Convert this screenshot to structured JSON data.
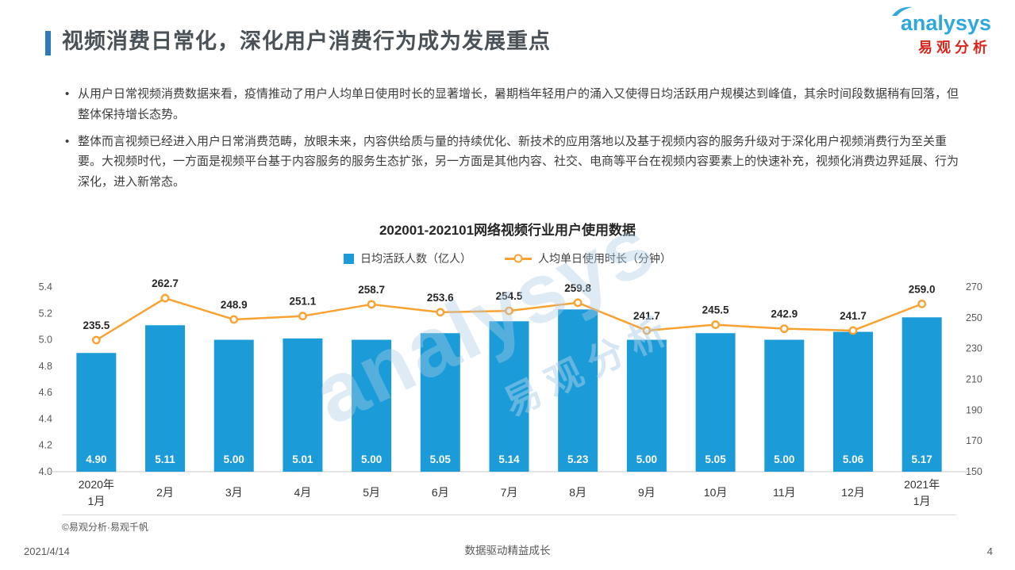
{
  "header": {
    "title": "视频消费日常化，深化用户消费行为成为发展重点",
    "logo_brand": "analysys",
    "logo_brand_cn": "易观分析"
  },
  "bullets": [
    "从用户日常视频消费数据来看，疫情推动了用户人均单日使用时长的显著增长，暑期档年轻用户的涌入又使得日均活跃用户规模达到峰值，其余时间段数据稍有回落，但整体保持增长态势。",
    "整体而言视频已经进入用户日常消费范畴，放眼未来，内容供给质与量的持续优化、新技术的应用落地以及基于视频内容的服务升级对于深化用户视频消费行为至关重要。大视频时代，一方面是视频平台基于内容服务的服务生态扩张，另一方面是其他内容、社交、电商等平台在视频内容要素上的快速补充，视频化消费边界延展、行为深化，进入新常态。"
  ],
  "chart_data": {
    "type": "bar+line",
    "title": "202001-202101网络视频行业用户使用数据",
    "grid": "off",
    "legend_position": "top",
    "categories": [
      {
        "year": "2020年",
        "month": "1月"
      },
      {
        "month": "2月"
      },
      {
        "month": "3月"
      },
      {
        "month": "4月"
      },
      {
        "month": "5月"
      },
      {
        "month": "6月"
      },
      {
        "month": "7月"
      },
      {
        "month": "8月"
      },
      {
        "month": "9月"
      },
      {
        "month": "10月"
      },
      {
        "month": "11月"
      },
      {
        "month": "12月"
      },
      {
        "year": "2021年",
        "month": "1月"
      }
    ],
    "series": [
      {
        "name": "日均活跃人数（亿人）",
        "type": "bar",
        "axis": "left",
        "color": "#1B9CD8",
        "values": [
          "4.90",
          "5.11",
          "5.00",
          "5.01",
          "5.00",
          "5.05",
          "5.14",
          "5.23",
          "5.00",
          "5.05",
          "5.00",
          "5.06",
          "5.17"
        ]
      },
      {
        "name": "人均单日使用时长（分钟）",
        "type": "line",
        "axis": "right",
        "color": "#F9A232",
        "values": [
          "235.5",
          "262.7",
          "248.9",
          "251.1",
          "258.7",
          "253.6",
          "254.5",
          "259.8",
          "241.7",
          "245.5",
          "242.9",
          "241.7",
          "259.0"
        ]
      }
    ],
    "left_axis": {
      "min": 4.0,
      "max": 5.4,
      "tick_labels": [
        "4.0",
        "4.2",
        "4.4",
        "4.6",
        "4.8",
        "5.0",
        "5.2",
        "5.4"
      ]
    },
    "right_axis": {
      "min": 150,
      "max": 270,
      "tick_labels": [
        "150",
        "170",
        "190",
        "210",
        "230",
        "250",
        "270"
      ]
    }
  },
  "chart_footer": {
    "source": "©易观分析·易观千帆"
  },
  "watermark": {
    "line1": "analysys",
    "line2": "易观分析"
  },
  "footer": {
    "date": "2021/4/14",
    "center": "数据驱动精益成长",
    "page": "4"
  }
}
